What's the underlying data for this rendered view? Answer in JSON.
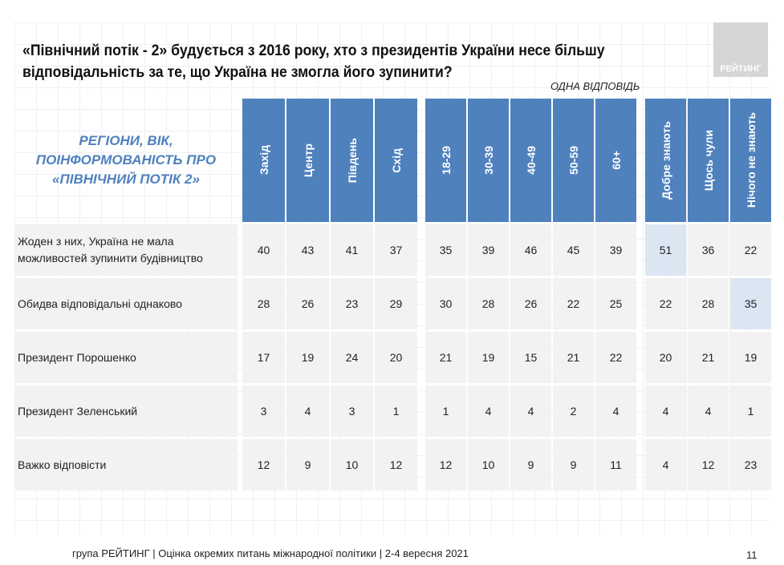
{
  "title": "«Північний потік - 2» будується з 2016 року, хто з президентів України несе більшу відповідальність за те, що Україна не змогла його зупинити?",
  "logo_text": "РЕЙТИНГ",
  "note": "ОДНА ВІДПОВІДЬ",
  "corner_label": "РЕГІОНИ, ВІК, ПОІНФОРМОВАНІСТЬ ПРО «ПІВНІЧНИЙ ПОТІК 2»",
  "colors": {
    "header": "#4f81bd",
    "row": "#f2f2f2",
    "highlight": "#dce6f2"
  },
  "column_groups": [
    [
      "Захід",
      "Центр",
      "Південь",
      "Схід"
    ],
    [
      "18-29",
      "30-39",
      "40-49",
      "50-59",
      "60+"
    ],
    [
      "Добре знають",
      "Щось чули",
      "Нічого не знають"
    ]
  ],
  "rows": [
    {
      "label": "Жоден з них, Україна не мала можливостей зупинити будівництво",
      "values": [
        40,
        43,
        41,
        37,
        35,
        39,
        46,
        45,
        39,
        51,
        36,
        22
      ],
      "highlight": [
        9
      ]
    },
    {
      "label": "Обидва відповідальні однаково",
      "values": [
        28,
        26,
        23,
        29,
        30,
        28,
        26,
        22,
        25,
        22,
        28,
        35
      ],
      "highlight": [
        11
      ]
    },
    {
      "label": "Президент Порошенко",
      "values": [
        17,
        19,
        24,
        20,
        21,
        19,
        15,
        21,
        22,
        20,
        21,
        19
      ],
      "highlight": []
    },
    {
      "label": "Президент Зеленський",
      "values": [
        3,
        4,
        3,
        1,
        1,
        4,
        4,
        2,
        4,
        4,
        4,
        1
      ],
      "highlight": []
    },
    {
      "label": "Важко відповісти",
      "values": [
        12,
        9,
        10,
        12,
        12,
        10,
        9,
        9,
        11,
        4,
        12,
        23
      ],
      "highlight": []
    }
  ],
  "footer": "група РЕЙТИНГ | Оцінка окремих питань міжнародної політики | 2-4 вересня 2021",
  "page_number": "11"
}
